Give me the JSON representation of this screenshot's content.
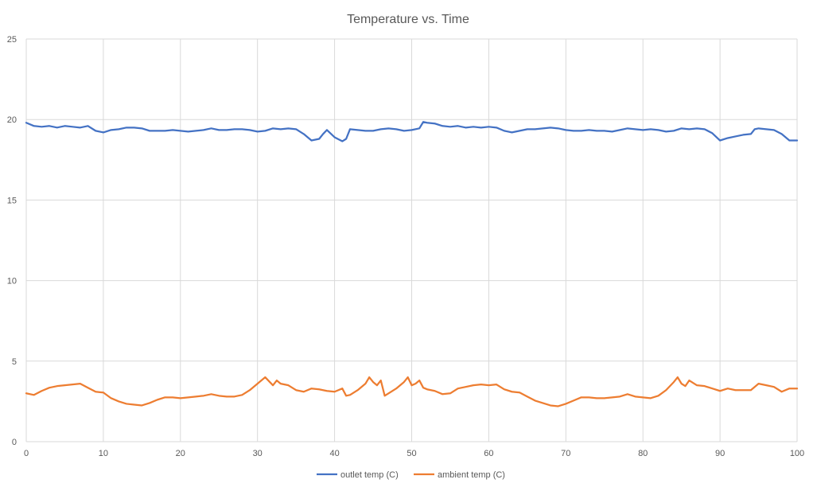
{
  "chart_data": {
    "type": "line",
    "title": "Temperature vs. Time",
    "xlabel": "",
    "ylabel": "",
    "xlim": [
      0,
      100
    ],
    "ylim": [
      0,
      25
    ],
    "x_ticks": [
      0,
      10,
      20,
      30,
      40,
      50,
      60,
      70,
      80,
      90,
      100
    ],
    "y_ticks": [
      0,
      5,
      10,
      15,
      20,
      25
    ],
    "grid": true,
    "legend_position": "bottom",
    "colors": {
      "outlet": "#4472C4",
      "ambient": "#ED7D31",
      "grid": "#d9d9d9",
      "text": "#595959"
    },
    "series": [
      {
        "name": "outlet temp (C)",
        "color": "#4472C4",
        "points": [
          [
            0,
            19.8
          ],
          [
            1,
            19.6
          ],
          [
            2,
            19.55
          ],
          [
            3,
            19.6
          ],
          [
            4,
            19.5
          ],
          [
            5,
            19.6
          ],
          [
            6,
            19.55
          ],
          [
            7,
            19.5
          ],
          [
            8,
            19.6
          ],
          [
            9,
            19.3
          ],
          [
            10,
            19.2
          ],
          [
            11,
            19.35
          ],
          [
            12,
            19.4
          ],
          [
            13,
            19.5
          ],
          [
            14,
            19.5
          ],
          [
            15,
            19.45
          ],
          [
            16,
            19.3
          ],
          [
            17,
            19.3
          ],
          [
            18,
            19.3
          ],
          [
            19,
            19.35
          ],
          [
            20,
            19.3
          ],
          [
            21,
            19.25
          ],
          [
            22,
            19.3
          ],
          [
            23,
            19.35
          ],
          [
            24,
            19.45
          ],
          [
            25,
            19.35
          ],
          [
            26,
            19.35
          ],
          [
            27,
            19.4
          ],
          [
            28,
            19.4
          ],
          [
            29,
            19.35
          ],
          [
            30,
            19.25
          ],
          [
            31,
            19.3
          ],
          [
            32,
            19.45
          ],
          [
            33,
            19.4
          ],
          [
            34,
            19.45
          ],
          [
            35,
            19.4
          ],
          [
            36,
            19.1
          ],
          [
            37,
            18.7
          ],
          [
            38,
            18.8
          ],
          [
            38.5,
            19.1
          ],
          [
            39,
            19.35
          ],
          [
            40,
            18.9
          ],
          [
            41,
            18.65
          ],
          [
            41.5,
            18.8
          ],
          [
            42,
            19.4
          ],
          [
            43,
            19.35
          ],
          [
            44,
            19.3
          ],
          [
            45,
            19.3
          ],
          [
            46,
            19.4
          ],
          [
            47,
            19.45
          ],
          [
            48,
            19.4
          ],
          [
            49,
            19.3
          ],
          [
            50,
            19.35
          ],
          [
            51,
            19.45
          ],
          [
            51.5,
            19.85
          ],
          [
            52,
            19.8
          ],
          [
            53,
            19.75
          ],
          [
            54,
            19.6
          ],
          [
            55,
            19.55
          ],
          [
            56,
            19.6
          ],
          [
            57,
            19.5
          ],
          [
            58,
            19.55
          ],
          [
            59,
            19.5
          ],
          [
            60,
            19.55
          ],
          [
            61,
            19.5
          ],
          [
            62,
            19.3
          ],
          [
            63,
            19.2
          ],
          [
            64,
            19.3
          ],
          [
            65,
            19.4
          ],
          [
            66,
            19.4
          ],
          [
            67,
            19.45
          ],
          [
            68,
            19.5
          ],
          [
            69,
            19.45
          ],
          [
            70,
            19.35
          ],
          [
            71,
            19.3
          ],
          [
            72,
            19.3
          ],
          [
            73,
            19.35
          ],
          [
            74,
            19.3
          ],
          [
            75,
            19.3
          ],
          [
            76,
            19.25
          ],
          [
            77,
            19.35
          ],
          [
            78,
            19.45
          ],
          [
            79,
            19.4
          ],
          [
            80,
            19.35
          ],
          [
            81,
            19.4
          ],
          [
            82,
            19.35
          ],
          [
            83,
            19.25
          ],
          [
            84,
            19.3
          ],
          [
            85,
            19.45
          ],
          [
            86,
            19.4
          ],
          [
            87,
            19.45
          ],
          [
            88,
            19.4
          ],
          [
            89,
            19.15
          ],
          [
            90,
            18.7
          ],
          [
            91,
            18.85
          ],
          [
            92,
            18.95
          ],
          [
            93,
            19.05
          ],
          [
            94,
            19.1
          ],
          [
            94.5,
            19.4
          ],
          [
            95,
            19.45
          ],
          [
            96,
            19.4
          ],
          [
            97,
            19.35
          ],
          [
            98,
            19.1
          ],
          [
            99,
            18.7
          ],
          [
            100,
            18.7
          ]
        ]
      },
      {
        "name": "ambient temp (C)",
        "color": "#ED7D31",
        "points": [
          [
            0,
            3.0
          ],
          [
            1,
            2.9
          ],
          [
            2,
            3.15
          ],
          [
            3,
            3.35
          ],
          [
            4,
            3.45
          ],
          [
            5,
            3.5
          ],
          [
            6,
            3.55
          ],
          [
            7,
            3.6
          ],
          [
            8,
            3.35
          ],
          [
            9,
            3.1
          ],
          [
            10,
            3.05
          ],
          [
            11,
            2.7
          ],
          [
            12,
            2.5
          ],
          [
            13,
            2.35
          ],
          [
            14,
            2.3
          ],
          [
            15,
            2.25
          ],
          [
            16,
            2.4
          ],
          [
            17,
            2.6
          ],
          [
            18,
            2.75
          ],
          [
            19,
            2.75
          ],
          [
            20,
            2.7
          ],
          [
            21,
            2.75
          ],
          [
            22,
            2.8
          ],
          [
            23,
            2.85
          ],
          [
            24,
            2.95
          ],
          [
            25,
            2.85
          ],
          [
            26,
            2.8
          ],
          [
            27,
            2.8
          ],
          [
            28,
            2.9
          ],
          [
            29,
            3.2
          ],
          [
            30,
            3.6
          ],
          [
            31,
            4.0
          ],
          [
            32,
            3.5
          ],
          [
            32.5,
            3.8
          ],
          [
            33,
            3.6
          ],
          [
            34,
            3.5
          ],
          [
            35,
            3.2
          ],
          [
            36,
            3.1
          ],
          [
            37,
            3.3
          ],
          [
            38,
            3.25
          ],
          [
            39,
            3.15
          ],
          [
            40,
            3.1
          ],
          [
            41,
            3.3
          ],
          [
            41.5,
            2.85
          ],
          [
            42,
            2.9
          ],
          [
            43,
            3.2
          ],
          [
            44,
            3.6
          ],
          [
            44.5,
            4.0
          ],
          [
            45,
            3.7
          ],
          [
            45.5,
            3.5
          ],
          [
            46,
            3.8
          ],
          [
            46.5,
            2.85
          ],
          [
            47,
            3.0
          ],
          [
            48,
            3.3
          ],
          [
            49,
            3.7
          ],
          [
            49.5,
            4.0
          ],
          [
            50,
            3.5
          ],
          [
            50.5,
            3.6
          ],
          [
            51,
            3.8
          ],
          [
            51.5,
            3.35
          ],
          [
            52,
            3.25
          ],
          [
            53,
            3.15
          ],
          [
            54,
            2.95
          ],
          [
            55,
            3.0
          ],
          [
            56,
            3.3
          ],
          [
            57,
            3.4
          ],
          [
            58,
            3.5
          ],
          [
            59,
            3.55
          ],
          [
            60,
            3.5
          ],
          [
            61,
            3.55
          ],
          [
            62,
            3.25
          ],
          [
            63,
            3.1
          ],
          [
            64,
            3.05
          ],
          [
            65,
            2.8
          ],
          [
            66,
            2.55
          ],
          [
            67,
            2.4
          ],
          [
            68,
            2.25
          ],
          [
            69,
            2.2
          ],
          [
            70,
            2.35
          ],
          [
            71,
            2.55
          ],
          [
            72,
            2.75
          ],
          [
            73,
            2.75
          ],
          [
            74,
            2.7
          ],
          [
            75,
            2.7
          ],
          [
            76,
            2.75
          ],
          [
            77,
            2.8
          ],
          [
            78,
            2.95
          ],
          [
            79,
            2.8
          ],
          [
            80,
            2.75
          ],
          [
            81,
            2.7
          ],
          [
            82,
            2.85
          ],
          [
            83,
            3.2
          ],
          [
            84,
            3.7
          ],
          [
            84.5,
            4.0
          ],
          [
            85,
            3.6
          ],
          [
            85.5,
            3.45
          ],
          [
            86,
            3.8
          ],
          [
            87,
            3.5
          ],
          [
            88,
            3.45
          ],
          [
            89,
            3.3
          ],
          [
            90,
            3.15
          ],
          [
            91,
            3.3
          ],
          [
            92,
            3.2
          ],
          [
            93,
            3.2
          ],
          [
            94,
            3.2
          ],
          [
            95,
            3.6
          ],
          [
            96,
            3.5
          ],
          [
            97,
            3.4
          ],
          [
            98,
            3.1
          ],
          [
            99,
            3.3
          ],
          [
            100,
            3.3
          ]
        ]
      }
    ]
  }
}
